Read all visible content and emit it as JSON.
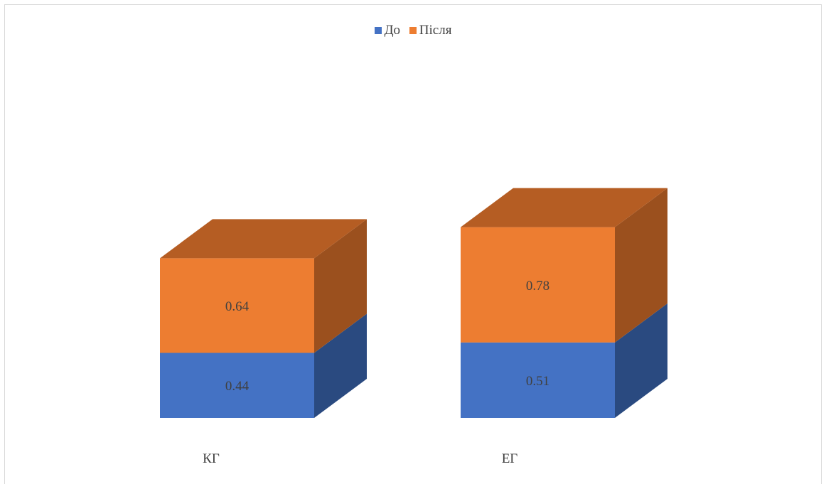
{
  "colors": {
    "before_front": "#4472c4",
    "before_side": "#2a4a80",
    "after_front": "#ed7d31",
    "after_side": "#9b501e",
    "after_top": "#b55d23"
  },
  "chart_data": {
    "type": "bar",
    "stacked": true,
    "style": "3d",
    "categories": [
      "КГ",
      "ЕГ"
    ],
    "series": [
      {
        "name": "До",
        "values": [
          0.44,
          0.51
        ],
        "labels": [
          "0.44",
          "0.51"
        ]
      },
      {
        "name": "Після",
        "values": [
          0.64,
          0.78
        ],
        "labels": [
          "0.64",
          "0.78"
        ]
      }
    ],
    "legend_position": "top",
    "grid": false
  }
}
